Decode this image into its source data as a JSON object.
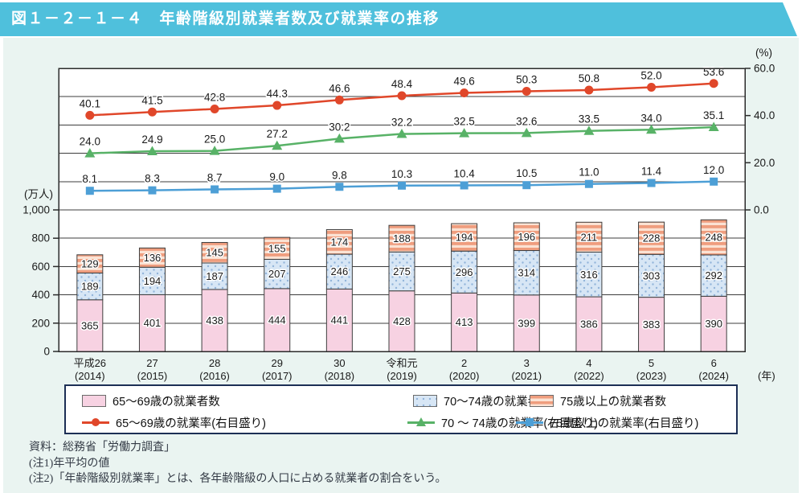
{
  "title": "図１－２－１－４　年齢階級別就業者数及び就業率の推移",
  "colors": {
    "titlebar": "#4fc0dc",
    "content_background": "#eaf4f1",
    "bar_pink": "#f7d2e2",
    "bar_blue_dotted": "#d7e6f5",
    "bar_orange_striped": "#ef9d7e",
    "line_red": "#e0472a",
    "line_green": "#58b267",
    "line_blue": "#4d9fd6",
    "legend_border": "#1c2f55"
  },
  "chart_data": {
    "type": "combo (stacked bar + line)",
    "categories": [
      {
        "era": "平成26",
        "year": "(2014)"
      },
      {
        "era": "27",
        "year": "(2015)"
      },
      {
        "era": "28",
        "year": "(2016)"
      },
      {
        "era": "29",
        "year": "(2017)"
      },
      {
        "era": "30",
        "year": "(2018)"
      },
      {
        "era": "令和元",
        "year": "(2019)"
      },
      {
        "era": "2",
        "year": "(2020)"
      },
      {
        "era": "3",
        "year": "(2021)"
      },
      {
        "era": "4",
        "year": "(2022)"
      },
      {
        "era": "5",
        "year": "(2023)"
      },
      {
        "era": "6",
        "year": "(2024)"
      }
    ],
    "x_axis_suffix": "(年)",
    "left_axis": {
      "unit": "(万人)",
      "min": 0,
      "max": 1000,
      "tick_values": [
        0,
        200,
        400,
        600,
        800,
        1000
      ],
      "tick_labels": [
        "0",
        "200",
        "400",
        "600",
        "800",
        "1,000"
      ]
    },
    "right_axis": {
      "unit": "(%)",
      "min": 0,
      "max": 60,
      "tick_values": [
        0,
        20,
        40,
        60
      ],
      "tick_labels": [
        "0.0",
        "20.0",
        "40.0",
        "60.0"
      ]
    },
    "grid": "horizontal, 10 intervals",
    "legend_position": "bottom box, two rows",
    "bar_series": [
      {
        "key": "bar-65-69",
        "name": "65～69歳の就業者数",
        "swatch": "pink",
        "values": [
          365,
          401,
          438,
          444,
          441,
          428,
          413,
          399,
          386,
          383,
          390
        ]
      },
      {
        "key": "bar-70-74",
        "name": "70～74歳の就業者数",
        "swatch": "dots",
        "values": [
          189,
          194,
          187,
          207,
          246,
          275,
          296,
          314,
          316,
          303,
          292
        ]
      },
      {
        "key": "bar-75plus",
        "name": "75歳以上の就業者数",
        "swatch": "stripes",
        "values": [
          129,
          136,
          145,
          155,
          174,
          188,
          194,
          196,
          211,
          228,
          248
        ]
      }
    ],
    "line_series": [
      {
        "key": "rate-65-69",
        "name": "65～69歳の就業率(右目盛り)",
        "marker": "circle",
        "color": "#e0472a",
        "values": [
          40.1,
          41.5,
          42.8,
          44.3,
          46.6,
          48.4,
          49.6,
          50.3,
          50.8,
          52.0,
          53.6
        ]
      },
      {
        "key": "rate-70-74",
        "name": "70 ～ 74歳の就業率(右目盛り)",
        "marker": "triangle",
        "color": "#58b267",
        "values": [
          24.0,
          24.9,
          25.0,
          27.2,
          30.2,
          32.2,
          32.5,
          32.6,
          33.5,
          34.0,
          35.1
        ]
      },
      {
        "key": "rate-75plus",
        "name": "75歳以上の就業率(右目盛り)",
        "marker": "square",
        "color": "#4d9fd6",
        "values": [
          8.1,
          8.3,
          8.7,
          9.0,
          9.8,
          10.3,
          10.4,
          10.5,
          11.0,
          11.4,
          12.0
        ]
      }
    ]
  },
  "notes": [
    "資料：総務省「労働力調査」",
    "(注1)年平均の値",
    "(注2)「年齢階級別就業率」とは、各年齢階級の人口に占める就業者の割合をいう。"
  ]
}
